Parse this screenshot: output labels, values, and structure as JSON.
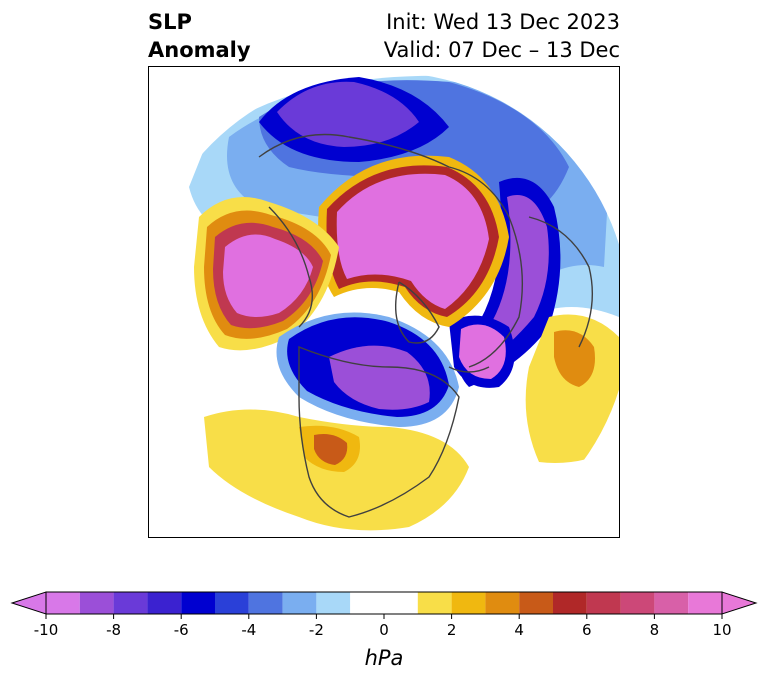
{
  "title": {
    "left_line1": "SLP",
    "left_line2": "Anomaly",
    "right_line1": "Init: Wed 13 Dec 2023",
    "right_line2": "Valid: 07 Dec – 13 Dec"
  },
  "colorbar": {
    "units": "hPa",
    "ticks": [
      "-10",
      "-8",
      "-6",
      "-4",
      "-2",
      "0",
      "2",
      "4",
      "6",
      "8",
      "10"
    ],
    "levels": [
      -10,
      -9,
      -8,
      -7,
      -6,
      -5,
      -4,
      -3,
      -2,
      -1,
      1,
      2,
      3,
      4,
      5,
      6,
      7,
      8,
      9,
      10
    ],
    "colors": [
      "#d878e8",
      "#9b4fd8",
      "#6a3ad8",
      "#3b22d0",
      "#0000d0",
      "#2a40d8",
      "#4f74e0",
      "#7aaef0",
      "#a8d8f8",
      "#ffffff",
      "#f8de48",
      "#f0b810",
      "#e08c10",
      "#c85a18",
      "#b02828",
      "#c03850",
      "#cc4878",
      "#d860a8",
      "#e878d8"
    ],
    "extend": "both"
  },
  "map": {
    "projection": "north-polar-stereographic",
    "colors": {
      "neg10": "#e070e0",
      "neg8": "#9b4fd8",
      "neg7": "#6a3ad8",
      "neg6": "#3b22d0",
      "neg5": "#0000d0",
      "neg4": "#4f74e0",
      "neg3": "#7aaef0",
      "neg2": "#a8d8f8",
      "pos1": "#f8de48",
      "pos2": "#f0b810",
      "pos3": "#e08c10",
      "pos4": "#c85a18",
      "pos5": "#b02828",
      "pos6": "#c03850",
      "pos7": "#d860a8",
      "pos10": "#e070e0",
      "coast": "#404040"
    }
  }
}
